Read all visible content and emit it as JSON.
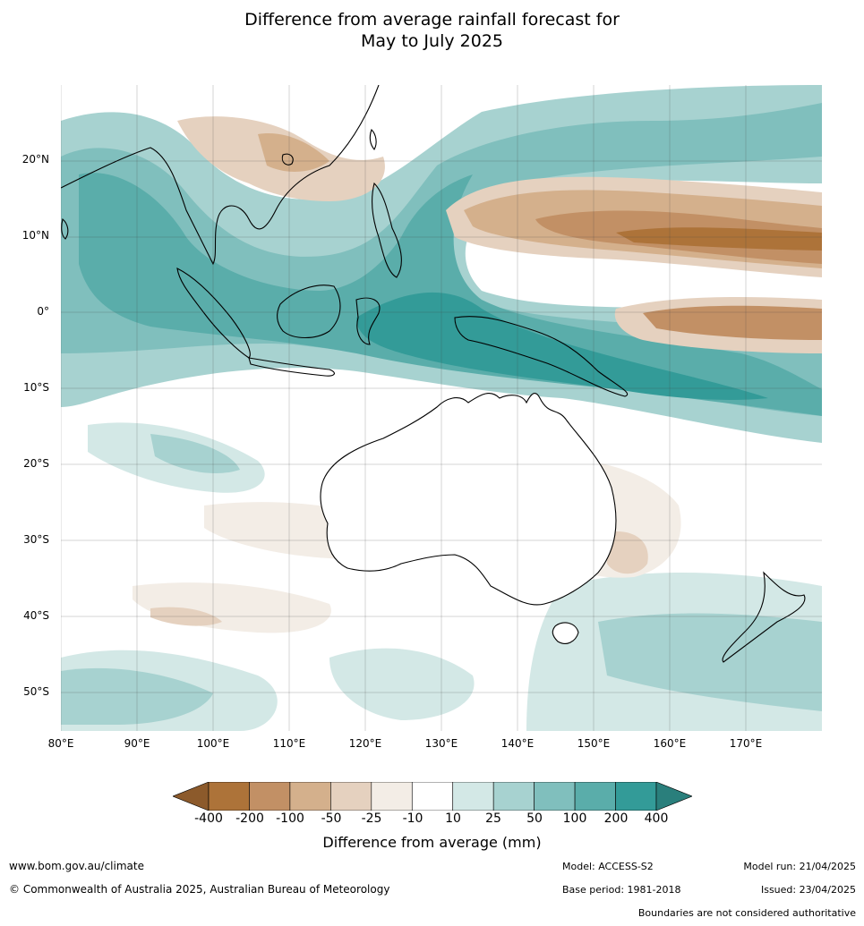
{
  "title_line1": "Difference from average rainfall forecast for",
  "title_line2": "May to July 2025",
  "map": {
    "lon_labels": [
      "80°E",
      "90°E",
      "100°E",
      "110°E",
      "120°E",
      "130°E",
      "140°E",
      "150°E",
      "160°E",
      "170°E"
    ],
    "lat_labels": [
      "20°N",
      "10°N",
      "0°",
      "10°S",
      "20°S",
      "30°S",
      "40°S",
      "50°S"
    ],
    "lon_range": [
      80,
      180
    ],
    "lat_range": [
      -55,
      30
    ]
  },
  "colorbar": {
    "ticks": [
      "-400",
      "-200",
      "-100",
      "-50",
      "-25",
      "-10",
      "10",
      "25",
      "50",
      "100",
      "200",
      "400"
    ],
    "colors": [
      "#8c5a2b",
      "#ad7339",
      "#c29065",
      "#d4b08c",
      "#e5d1bf",
      "#f3ede6",
      "#ffffff",
      "#d3e8e6",
      "#a7d2d0",
      "#80bfbd",
      "#5aadaa",
      "#339b98",
      "#2a7f7c"
    ],
    "title": "Difference from average (mm)"
  },
  "footer": {
    "url": "www.bom.gov.au/climate",
    "copyright": "© Commonwealth of Australia 2025, Australian Bureau of Meteorology",
    "model": "Model: ACCESS-S2",
    "base_period": "Base period: 1981-2018",
    "model_run": "Model run: 21/04/2025",
    "issued": "Issued: 23/04/2025",
    "disclaimer": "Boundaries are not considered authoritative"
  }
}
